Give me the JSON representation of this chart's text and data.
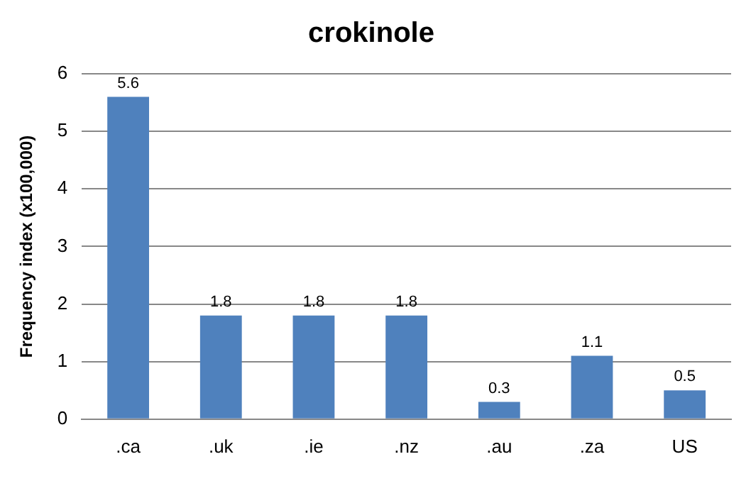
{
  "chart_data": {
    "type": "bar",
    "title": "crokinole",
    "ylabel": "Frequency index (x100,000)",
    "categories": [
      ".ca",
      ".uk",
      ".ie",
      ".nz",
      ".au",
      ".za",
      "US"
    ],
    "values": [
      5.6,
      1.8,
      1.8,
      1.8,
      0.3,
      1.1,
      0.5
    ],
    "color": "#4f81bd",
    "ylim": [
      0,
      6
    ],
    "yticks": [
      0,
      1,
      2,
      3,
      4,
      5,
      6
    ],
    "grid": "y",
    "data_labels": true
  }
}
